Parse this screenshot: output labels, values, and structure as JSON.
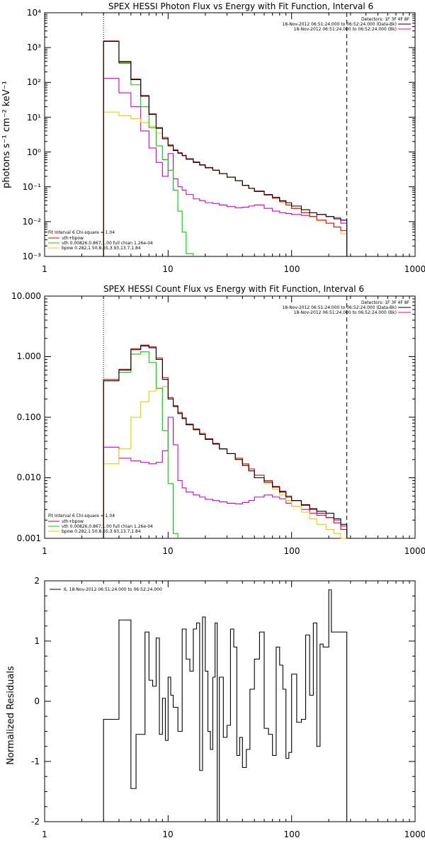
{
  "colors": {
    "data": "#000000",
    "total": "#e00000",
    "vth": "#00cc00",
    "bpow": "#e6cc00",
    "bkg": "#cc00cc",
    "total_line": "#e00000",
    "fit_range_start": "#e6a000"
  },
  "chart_data": [
    {
      "type": "line",
      "title": "SPEX HESSI Photon Flux vs Energy with Fit Function, Interval 6",
      "ylabel": "photons s⁻¹ cm⁻² keV⁻¹",
      "xlabel": "",
      "xscale": "log",
      "yscale": "log",
      "xlim": [
        1,
        1000
      ],
      "ylim": [
        0.001,
        10000
      ],
      "x_ticks": [
        "1",
        "10",
        "100",
        "1000"
      ],
      "y_ticks": [
        "10⁻³",
        "10⁻²",
        "10⁻¹",
        "10⁰",
        "10¹",
        "10²",
        "10³",
        "10⁴"
      ],
      "legend_top_right": [
        "Detectors: 1F 3F 4F 8F",
        "18-Nov-2012 06:51:24.000 to 06:52:24.000 (Data-Bk)",
        "18-Nov-2012 06:51:24.000 to 06:52:24.000 (Bk)"
      ],
      "legend_bottom_left": [
        "Fit Interval  6    Chi-square = 1.04",
        "vth+bpow",
        "vth 0.00826,0.867,1.00   full chian 1.26e-04",
        "bpow 0.282,1.50,8.65,3.93,13.7,1.84"
      ],
      "fit_start_keV": 3,
      "bin_edges": [
        3,
        4,
        5,
        6,
        7,
        8,
        9,
        10,
        11,
        12,
        13,
        14,
        16,
        18,
        20,
        23,
        26,
        30,
        35,
        40,
        45,
        50,
        60,
        70,
        80,
        90,
        100,
        120,
        140,
        160,
        190,
        220,
        250,
        280
      ],
      "series": [
        {
          "name": "Data-Bk",
          "key": "data",
          "values": [
            1500,
            380,
            120,
            40,
            12,
            4.8,
            2.4,
            1.5,
            1.1,
            0.92,
            0.78,
            0.62,
            0.5,
            0.42,
            0.35,
            0.3,
            0.24,
            0.19,
            0.15,
            0.11,
            0.09,
            0.075,
            0.06,
            0.05,
            0.04,
            0.035,
            0.028,
            0.022,
            0.018,
            0.016,
            0.014,
            0.012,
            0.011
          ]
        },
        {
          "name": "vth+bpow",
          "key": "total",
          "values": [
            1550,
            400,
            125,
            42,
            12.5,
            5,
            2.6,
            1.6,
            1.15,
            0.95,
            0.8,
            0.64,
            0.52,
            0.43,
            0.36,
            0.3,
            0.24,
            0.19,
            0.15,
            0.11,
            0.09,
            0.073,
            0.058,
            0.047,
            0.037,
            0.03,
            0.024,
            0.018,
            0.014,
            0.011,
            0.009,
            0.007,
            0.0055
          ]
        },
        {
          "name": "vth",
          "key": "vth",
          "values": [
            1500,
            350,
            85,
            20,
            5,
            1.5,
            0.6,
            0.3,
            0.08,
            0.02,
            0.005,
            0.0012
          ]
        },
        {
          "name": "bpow",
          "key": "bpow",
          "values": [
            14,
            11,
            9,
            7,
            5.5,
            3.5,
            2.4,
            1.5,
            1.1,
            0.95,
            0.8,
            0.64,
            0.52,
            0.43,
            0.36,
            0.3,
            0.24,
            0.19,
            0.15,
            0.11,
            0.09,
            0.073,
            0.058,
            0.047,
            0.037,
            0.03,
            0.024,
            0.018,
            0.014,
            0.011,
            0.009,
            0.007,
            0.0045
          ]
        },
        {
          "name": "Bk",
          "key": "bkg",
          "values": [
            130,
            50,
            20,
            4,
            1.3,
            0.5,
            0.2,
            0.9,
            0.17,
            0.1,
            0.08,
            0.06,
            0.045,
            0.04,
            0.035,
            0.033,
            0.03,
            0.027,
            0.025,
            0.026,
            0.028,
            0.03,
            0.024,
            0.02,
            0.018,
            0.017,
            0.016,
            0.015,
            0.014,
            0.016,
            0.014,
            0.013,
            0.009
          ]
        }
      ]
    },
    {
      "type": "line",
      "title": "SPEX HESSI Count Flux vs Energy with Fit Function, Interval 6",
      "ylabel": "",
      "xlabel": "",
      "xscale": "log",
      "yscale": "log",
      "xlim": [
        1,
        1000
      ],
      "ylim": [
        0.001,
        10
      ],
      "x_ticks": [
        "1",
        "10",
        "100",
        "1000"
      ],
      "y_ticks": [
        "0.001",
        "0.010",
        "0.100",
        "1.000",
        "10.000"
      ],
      "legend_top_right": [
        "Detectors: 1F 3F 4F 8F",
        "18-Nov-2012 06:51:24.000 to 06:52:24.000 (Data-Bk)",
        "18-Nov-2012 06:51:24.000 to 06:52:24.000 (Bk)"
      ],
      "legend_bottom_left": [
        "Fit Interval  6    Chi-square = 1.04",
        "vth+bpow",
        "vth 0.00826,0.867,1.00   full chian 1.26e-04",
        "bpow 0.282,1.50,8.65,3.93,13.7,1.84"
      ],
      "fit_start_keV": 3,
      "bin_edges": [
        3,
        4,
        5,
        6,
        7,
        8,
        9,
        10,
        11,
        12,
        13,
        14,
        16,
        18,
        20,
        23,
        26,
        30,
        35,
        40,
        45,
        50,
        60,
        70,
        80,
        90,
        100,
        120,
        140,
        160,
        190,
        220,
        250,
        280
      ],
      "series": [
        {
          "name": "Data-Bk",
          "key": "data",
          "values": [
            0.4,
            0.6,
            1.3,
            1.5,
            1.4,
            0.9,
            0.42,
            0.2,
            0.15,
            0.115,
            0.095,
            0.075,
            0.062,
            0.052,
            0.043,
            0.036,
            0.03,
            0.025,
            0.02,
            0.016,
            0.013,
            0.01,
            0.0085,
            0.007,
            0.0058,
            0.0048,
            0.0042,
            0.0036,
            0.0031,
            0.0028,
            0.0026,
            0.0021,
            0.0017
          ]
        },
        {
          "name": "vth+bpow",
          "key": "total",
          "values": [
            0.42,
            0.62,
            1.35,
            1.55,
            1.45,
            0.95,
            0.45,
            0.21,
            0.155,
            0.12,
            0.098,
            0.077,
            0.064,
            0.054,
            0.044,
            0.037,
            0.03,
            0.025,
            0.021,
            0.017,
            0.014,
            0.011,
            0.009,
            0.0072,
            0.006,
            0.005,
            0.0042,
            0.0035,
            0.003,
            0.0026,
            0.0022,
            0.0018,
            0.0014
          ]
        },
        {
          "name": "vth",
          "key": "vth",
          "values": [
            0.4,
            0.55,
            1.1,
            1.2,
            0.8,
            0.3,
            0.06,
            0.008,
            0.0012
          ]
        },
        {
          "name": "bpow",
          "key": "bpow",
          "values": [
            0.017,
            0.03,
            0.1,
            0.18,
            0.27,
            0.3,
            0.32,
            0.2,
            0.15,
            0.115,
            0.095,
            0.075,
            0.062,
            0.052,
            0.043,
            0.036,
            0.03,
            0.025,
            0.02,
            0.016,
            0.013,
            0.01,
            0.008,
            0.0065,
            0.0052,
            0.0042,
            0.0034,
            0.0027,
            0.0021,
            0.0017,
            0.0014,
            0.0012,
            0.0009
          ]
        },
        {
          "name": "Bk",
          "key": "bkg",
          "values": [
            0.032,
            0.021,
            0.019,
            0.018,
            0.017,
            0.018,
            0.028,
            0.1,
            0.035,
            0.009,
            0.0068,
            0.0058,
            0.0052,
            0.0048,
            0.0044,
            0.0042,
            0.004,
            0.0038,
            0.0037,
            0.0039,
            0.0042,
            0.0048,
            0.0052,
            0.0048,
            0.0045,
            0.0038,
            0.0034,
            0.003,
            0.0026,
            0.0024,
            0.0022,
            0.002,
            0.0016
          ]
        }
      ]
    },
    {
      "type": "line",
      "title": "",
      "ylabel": "Normalized Residuals",
      "xlabel": "",
      "xscale": "log",
      "yscale": "linear",
      "xlim": [
        1,
        1000
      ],
      "ylim": [
        -2,
        2
      ],
      "x_ticks": [
        "1",
        "10",
        "100",
        "1000"
      ],
      "y_ticks": [
        "-2",
        "-1",
        "0",
        "1",
        "2"
      ],
      "legend": "6, 18-Nov-2012 06:51:24.000 to 06:52:24.000",
      "bin_edges": [
        3,
        4,
        4.5,
        5,
        5.5,
        6,
        6.5,
        7,
        7.5,
        8,
        8.5,
        9,
        9.5,
        10,
        10.5,
        11,
        12,
        13,
        14,
        15,
        16,
        17,
        18,
        19,
        20,
        21,
        22,
        23,
        24,
        25,
        26,
        28,
        30,
        32,
        34,
        36,
        38,
        40,
        43,
        46,
        50,
        55,
        60,
        65,
        70,
        75,
        80,
        85,
        90,
        95,
        100,
        110,
        120,
        130,
        140,
        150,
        160,
        170,
        180,
        190,
        200,
        210,
        230,
        250,
        280
      ],
      "series": [
        {
          "name": "6, 18-Nov-2012 06:51:24.000 to 06:52:24.000",
          "key": "data",
          "values": [
            -0.3,
            1.35,
            1.35,
            -1.45,
            -0.55,
            -0.55,
            1.15,
            0.35,
            0.25,
            1.05,
            -0.55,
            0.05,
            -0.65,
            0.4,
            0.1,
            -0.1,
            -0.5,
            1.2,
            0.7,
            0.5,
            1.2,
            1.3,
            -1.15,
            1.4,
            0.5,
            -0.5,
            -0.8,
            0.4,
            1.3,
            -2.1,
            0.4,
            -0.6,
            -0.4,
            1.2,
            0.9,
            -0.9,
            -0.6,
            -1.1,
            -0.8,
            0.2,
            0.7,
            1.15,
            -0.45,
            -0.55,
            -0.9,
            0.9,
            0.6,
            0.2,
            -0.95,
            -0.85,
            0.45,
            -0.35,
            -0.3,
            1.1,
            0.1,
            1.3,
            -0.75,
            0.95,
            0.9,
            0.9,
            1.85,
            1.15,
            1.15,
            1.15
          ]
        }
      ]
    }
  ]
}
